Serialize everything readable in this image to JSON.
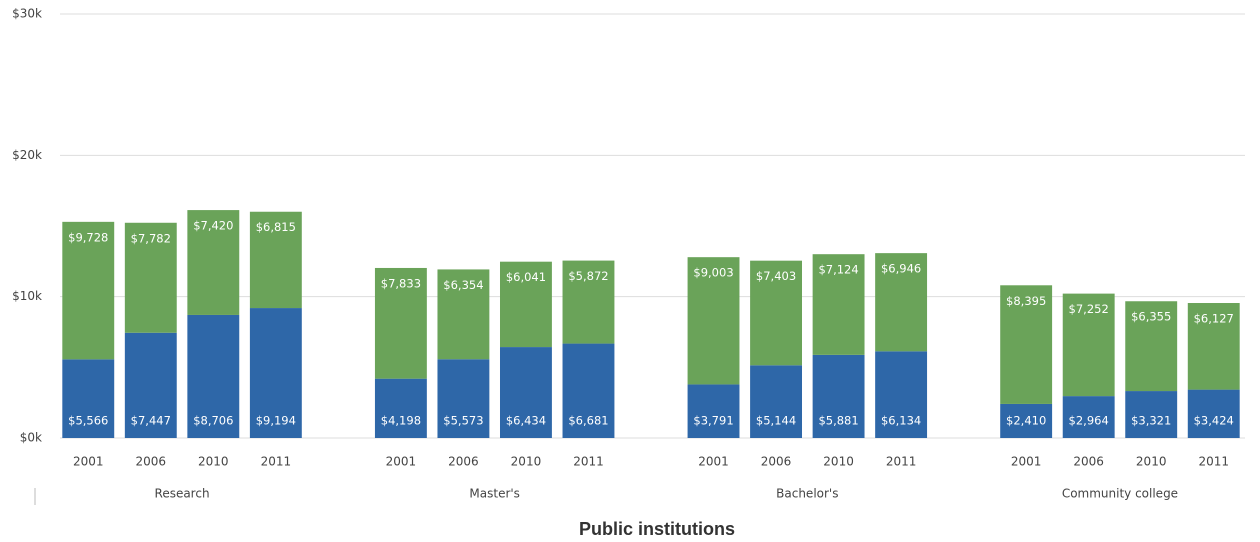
{
  "chart_data": {
    "type": "stacked_bar",
    "x_label": "Public institutions",
    "groups": [
      "Research",
      "Master's",
      "Bachelor's",
      "Community college"
    ],
    "categories": [
      "2001",
      "2006",
      "2010",
      "2011",
      "2001",
      "2006",
      "2010",
      "2011",
      "2001",
      "2006",
      "2010",
      "2011",
      "2001",
      "2006",
      "2010",
      "2011"
    ],
    "series": [
      {
        "color": "#2e67a8",
        "values": [
          5566,
          7447,
          8706,
          9194,
          4198,
          5573,
          6434,
          6681,
          3791,
          5144,
          5881,
          6134,
          2410,
          2964,
          3321,
          3424
        ],
        "value_labels": [
          "$5,566",
          "$7,447",
          "$8,706",
          "$9,194",
          "$4,198",
          "$5,573",
          "$6,434",
          "$6,681",
          "$3,791",
          "$5,144",
          "$5,881",
          "$6,134",
          "$2,410",
          "$2,964",
          "$3,321",
          "$3,424"
        ]
      },
      {
        "color": "#6aa359",
        "values": [
          9728,
          7782,
          7420,
          6815,
          7833,
          6354,
          6041,
          5872,
          9003,
          7403,
          7124,
          6946,
          8395,
          7252,
          6355,
          6127
        ],
        "value_labels": [
          "$9,728",
          "$7,782",
          "$7,420",
          "$6,815",
          "$7,833",
          "$6,354",
          "$6,041",
          "$5,872",
          "$9,003",
          "$7,403",
          "$7,124",
          "$6,946",
          "$8,395",
          "$7,252",
          "$6,355",
          "$6,127"
        ]
      }
    ],
    "ylim": [
      0,
      30000
    ],
    "yticks": [
      {
        "value": 0,
        "label": "$0k"
      },
      {
        "value": 10000,
        "label": "$10k"
      },
      {
        "value": 20000,
        "label": "$20k"
      },
      {
        "value": 30000,
        "label": "$30k"
      }
    ],
    "grid": true
  }
}
